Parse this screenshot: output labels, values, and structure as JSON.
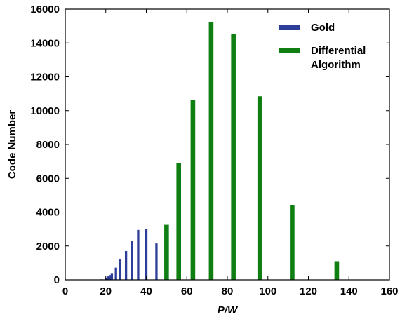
{
  "chart_data": {
    "type": "bar",
    "xlabel": "P/W",
    "ylabel": "Code Number",
    "xlim": [
      0,
      160
    ],
    "ylim": [
      0,
      16000
    ],
    "xticks": [
      0,
      20,
      40,
      60,
      80,
      100,
      120,
      140,
      160
    ],
    "yticks": [
      0,
      2000,
      4000,
      6000,
      8000,
      10000,
      12000,
      14000,
      16000
    ],
    "grid": false,
    "legend_position": "top-right",
    "series": [
      {
        "name": "Gold",
        "color": "#2c3e9a",
        "points": [
          {
            "x": 18,
            "y": 30
          },
          {
            "x": 20,
            "y": 100
          },
          {
            "x": 21,
            "y": 200
          },
          {
            "x": 22,
            "y": 280
          },
          {
            "x": 23,
            "y": 400
          },
          {
            "x": 25,
            "y": 720
          },
          {
            "x": 27,
            "y": 1200
          },
          {
            "x": 30,
            "y": 1700
          },
          {
            "x": 33,
            "y": 2300
          },
          {
            "x": 36,
            "y": 2950
          },
          {
            "x": 40,
            "y": 3000
          },
          {
            "x": 45,
            "y": 2150
          }
        ]
      },
      {
        "name": "Differential Algorithm",
        "color": "#0f7f12",
        "points": [
          {
            "x": 50,
            "y": 3250
          },
          {
            "x": 56,
            "y": 6900
          },
          {
            "x": 63,
            "y": 10650
          },
          {
            "x": 72,
            "y": 15250
          },
          {
            "x": 83,
            "y": 14550
          },
          {
            "x": 96,
            "y": 10850
          },
          {
            "x": 112,
            "y": 4400
          },
          {
            "x": 134,
            "y": 1100
          }
        ]
      }
    ],
    "legend": [
      {
        "label_lines": [
          "Gold"
        ],
        "color": "#2c3e9a"
      },
      {
        "label_lines": [
          "Differential",
          "Algorithm"
        ],
        "color": "#0f7f12"
      }
    ]
  }
}
